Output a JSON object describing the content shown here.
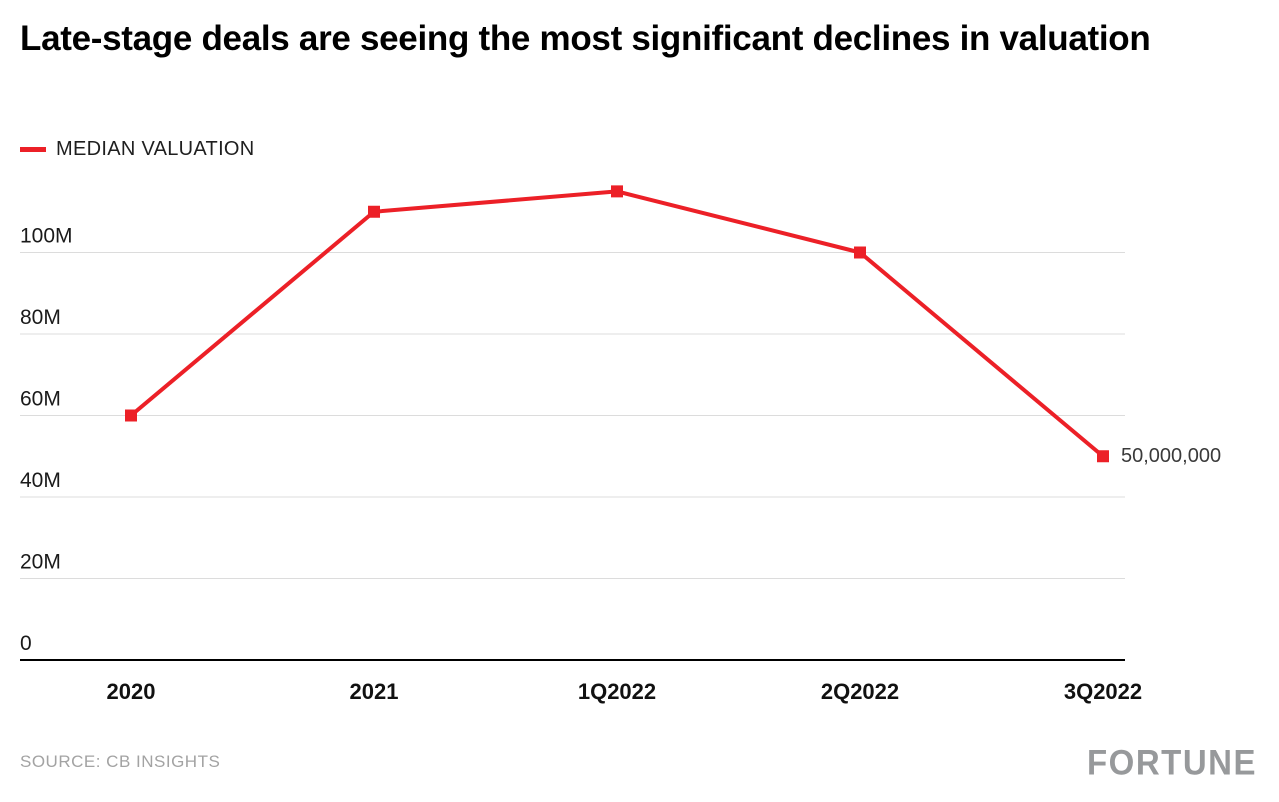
{
  "title": "Late-stage deals are seeing the most significant declines in valuation",
  "legend": {
    "label": "MEDIAN VALUATION"
  },
  "annotation": "50,000,000",
  "source": "SOURCE: CB INSIGHTS",
  "logo": "FORTUNE",
  "colors": {
    "line": "#ec2027",
    "grid": "#dcdcdc",
    "axis": "#000000",
    "tick_text": "#1a1a1a",
    "muted_text": "#a3a3a3"
  },
  "chart_data": {
    "type": "line",
    "title": "Late-stage deals are seeing the most significant declines in valuation",
    "categories": [
      "2020",
      "2021",
      "1Q2022",
      "2Q2022",
      "3Q2022"
    ],
    "series": [
      {
        "name": "MEDIAN VALUATION",
        "values": [
          60000000,
          110000000,
          115000000,
          100000000,
          50000000
        ]
      }
    ],
    "xlabel": "",
    "ylabel": "",
    "ylim": [
      0,
      120000000
    ],
    "yticks": [
      0,
      20000000,
      40000000,
      60000000,
      80000000,
      100000000
    ],
    "ytick_labels": [
      "0",
      "20M",
      "40M",
      "60M",
      "80M",
      "100M"
    ],
    "grid": true,
    "legend_position": "top-left",
    "marker": "square",
    "last_point_label": "50,000,000",
    "source": "SOURCE: CB INSIGHTS"
  }
}
